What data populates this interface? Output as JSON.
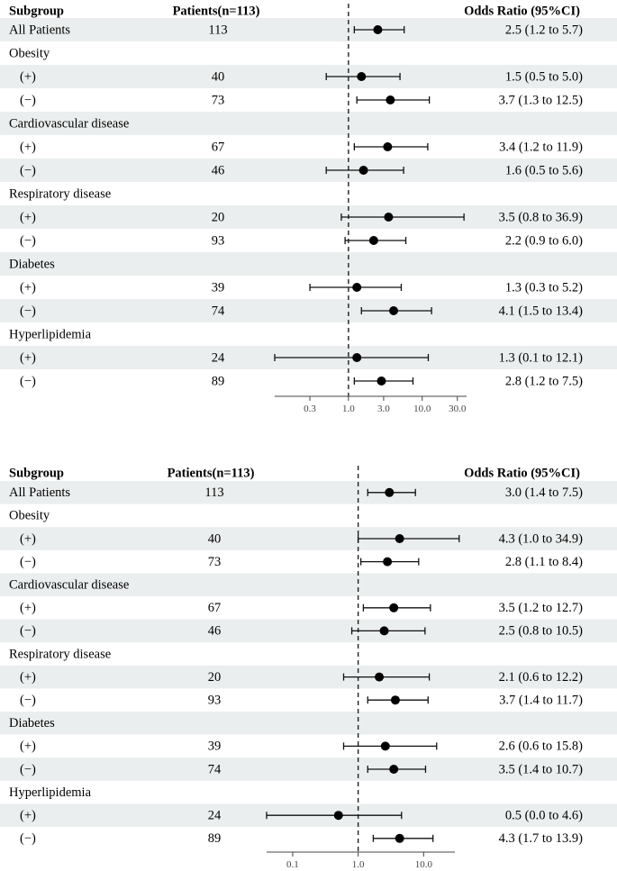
{
  "chart_data": [
    {
      "type": "forest",
      "headers": {
        "subgroup": "Subgroup",
        "patients": "Patients(n=113)",
        "or": "Odds Ratio (95%CI)"
      },
      "x_scale": "log",
      "xlim": [
        0.1,
        40
      ],
      "reference_line": 1.0,
      "ticks": [
        0.3,
        1.0,
        3.0,
        10.0,
        30.0
      ],
      "tick_labels": [
        "0.3",
        "1.0",
        "3.0",
        "10.0",
        "30.0"
      ],
      "rows": [
        {
          "label": "All Patients",
          "indent": false,
          "shaded": true,
          "n": "113",
          "or": 2.5,
          "lo": 1.2,
          "hi": 5.7,
          "text": "2.5 (1.2 to 5.7)"
        },
        {
          "label": "Obesity",
          "indent": false,
          "shaded": false
        },
        {
          "label": "(+)",
          "indent": true,
          "shaded": true,
          "n": "40",
          "or": 1.5,
          "lo": 0.5,
          "hi": 5.0,
          "text": "1.5 (0.5 to 5.0)"
        },
        {
          "label": "(−)",
          "indent": true,
          "shaded": false,
          "n": "73",
          "or": 3.7,
          "lo": 1.3,
          "hi": 12.5,
          "text": "3.7 (1.3 to 12.5)"
        },
        {
          "label": "Cardiovascular disease",
          "indent": false,
          "shaded": true
        },
        {
          "label": "(+)",
          "indent": true,
          "shaded": false,
          "n": "67",
          "or": 3.4,
          "lo": 1.2,
          "hi": 11.9,
          "text": "3.4 (1.2 to 11.9)"
        },
        {
          "label": "(−)",
          "indent": true,
          "shaded": true,
          "n": "46",
          "or": 1.6,
          "lo": 0.5,
          "hi": 5.6,
          "text": "1.6 (0.5 to 5.6)"
        },
        {
          "label": "Respiratory disease",
          "indent": false,
          "shaded": false
        },
        {
          "label": "(+)",
          "indent": true,
          "shaded": true,
          "n": "20",
          "or": 3.5,
          "lo": 0.8,
          "hi": 36.9,
          "text": "3.5 (0.8 to 36.9)"
        },
        {
          "label": "(−)",
          "indent": true,
          "shaded": false,
          "n": "93",
          "or": 2.2,
          "lo": 0.9,
          "hi": 6.0,
          "text": "2.2 (0.9 to 6.0)"
        },
        {
          "label": "Diabetes",
          "indent": false,
          "shaded": true
        },
        {
          "label": "(+)",
          "indent": true,
          "shaded": false,
          "n": "39",
          "or": 1.3,
          "lo": 0.3,
          "hi": 5.2,
          "text": "1.3 (0.3 to 5.2)"
        },
        {
          "label": "(−)",
          "indent": true,
          "shaded": true,
          "n": "74",
          "or": 4.1,
          "lo": 1.5,
          "hi": 13.4,
          "text": "4.1 (1.5 to 13.4)"
        },
        {
          "label": "Hyperlipidemia",
          "indent": false,
          "shaded": false
        },
        {
          "label": "(+)",
          "indent": true,
          "shaded": true,
          "n": "24",
          "or": 1.3,
          "lo": 0.1,
          "hi": 12.1,
          "text": "1.3 (0.1 to 12.1)"
        },
        {
          "label": "(−)",
          "indent": true,
          "shaded": false,
          "n": "89",
          "or": 2.8,
          "lo": 1.2,
          "hi": 7.5,
          "text": "2.8 (1.2 to 7.5)"
        }
      ]
    },
    {
      "type": "forest",
      "headers": {
        "subgroup": "Subgroup",
        "patients": "Patients(n=113)",
        "or": "Odds Ratio (95%CI)"
      },
      "x_scale": "log",
      "xlim": [
        0.04,
        30
      ],
      "reference_line": 1.0,
      "ticks": [
        0.1,
        1.0,
        10.0
      ],
      "tick_labels": [
        "0.1",
        "1.0",
        "10.0"
      ],
      "rows": [
        {
          "label": "All Patients",
          "indent": false,
          "shaded": true,
          "n": "113",
          "or": 3.0,
          "lo": 1.4,
          "hi": 7.5,
          "text": "3.0 (1.4 to 7.5)"
        },
        {
          "label": "Obesity",
          "indent": false,
          "shaded": false
        },
        {
          "label": "(+)",
          "indent": true,
          "shaded": true,
          "n": "40",
          "or": 4.3,
          "lo": 1.0,
          "hi": 34.9,
          "text": "4.3 (1.0 to 34.9)"
        },
        {
          "label": "(−)",
          "indent": true,
          "shaded": false,
          "n": "73",
          "or": 2.8,
          "lo": 1.1,
          "hi": 8.4,
          "text": "2.8 (1.1 to 8.4)"
        },
        {
          "label": "Cardiovascular disease",
          "indent": false,
          "shaded": true
        },
        {
          "label": "(+)",
          "indent": true,
          "shaded": false,
          "n": "67",
          "or": 3.5,
          "lo": 1.2,
          "hi": 12.7,
          "text": "3.5 (1.2 to 12.7)"
        },
        {
          "label": "(−)",
          "indent": true,
          "shaded": true,
          "n": "46",
          "or": 2.5,
          "lo": 0.8,
          "hi": 10.5,
          "text": "2.5 (0.8 to 10.5)"
        },
        {
          "label": "Respiratory disease",
          "indent": false,
          "shaded": false
        },
        {
          "label": "(+)",
          "indent": true,
          "shaded": true,
          "n": "20",
          "or": 2.1,
          "lo": 0.6,
          "hi": 12.2,
          "text": "2.1 (0.6 to 12.2)"
        },
        {
          "label": "(−)",
          "indent": true,
          "shaded": false,
          "n": "93",
          "or": 3.7,
          "lo": 1.4,
          "hi": 11.7,
          "text": "3.7 (1.4 to 11.7)"
        },
        {
          "label": "Diabetes",
          "indent": false,
          "shaded": true
        },
        {
          "label": "(+)",
          "indent": true,
          "shaded": false,
          "n": "39",
          "or": 2.6,
          "lo": 0.6,
          "hi": 15.8,
          "text": "2.6 (0.6 to 15.8)"
        },
        {
          "label": "(−)",
          "indent": true,
          "shaded": true,
          "n": "74",
          "or": 3.5,
          "lo": 1.4,
          "hi": 10.7,
          "text": "3.5 (1.4 to 10.7)"
        },
        {
          "label": "Hyperlipidemia",
          "indent": false,
          "shaded": false
        },
        {
          "label": "(+)",
          "indent": true,
          "shaded": true,
          "n": "24",
          "or": 0.5,
          "lo": 0.0,
          "hi": 4.6,
          "text": "0.5 (0.0 to 4.6)"
        },
        {
          "label": "(−)",
          "indent": true,
          "shaded": false,
          "n": "89",
          "or": 4.3,
          "lo": 1.7,
          "hi": 13.9,
          "text": "4.3 (1.7 to 13.9)"
        }
      ]
    }
  ],
  "colors": {
    "shade": "#ebeeee",
    "ink": "#111111",
    "axis": "#555555"
  }
}
